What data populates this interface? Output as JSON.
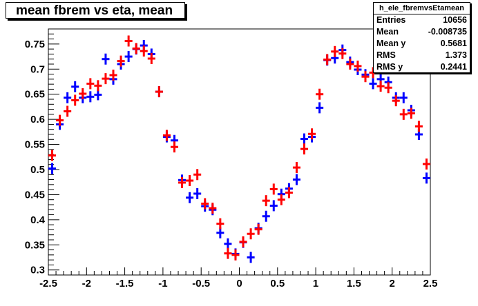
{
  "header": {
    "title": "mean fbrem vs eta, mean"
  },
  "stats": {
    "name": "h_ele_fbremvsEtamean",
    "rows": [
      {
        "label": "Entries",
        "value": "10656"
      },
      {
        "label": "Mean",
        "value": "-0.008735"
      },
      {
        "label": "Mean y",
        "value": "0.5681"
      },
      {
        "label": "RMS",
        "value": "1.373"
      },
      {
        "label": "RMS y",
        "value": "0.2441"
      }
    ]
  },
  "chart_data": {
    "type": "scatter",
    "title": "mean fbrem vs eta, mean",
    "xlim": [
      -2.5,
      2.5
    ],
    "ylim": [
      0.29,
      0.78
    ],
    "x_ticks": [
      -2.5,
      -2,
      -1.5,
      -1,
      -0.5,
      0,
      0.5,
      1,
      1.5,
      2,
      2.5
    ],
    "x_tick_labels": [
      "-2.5",
      "-2",
      "-1.5",
      "-1",
      "-0.5",
      "0",
      "0.5",
      "1",
      "1.5",
      "2",
      "2.5"
    ],
    "y_ticks": [
      0.3,
      0.35,
      0.4,
      0.45,
      0.5,
      0.55,
      0.6,
      0.65,
      0.7,
      0.75
    ],
    "y_tick_labels": [
      "0.3",
      "0.35",
      "0.4",
      "0.45",
      "0.5",
      "0.55",
      "0.6",
      "0.65",
      "0.7",
      "0.75"
    ],
    "grid": false,
    "bin_half_width": 0.05,
    "series": [
      {
        "color": "#0000ff",
        "x": [
          -2.45,
          -2.35,
          -2.25,
          -2.15,
          -2.05,
          -1.95,
          -1.85,
          -1.75,
          -1.65,
          -1.55,
          -1.45,
          -1.35,
          -1.25,
          -1.15,
          -1.05,
          -0.95,
          -0.85,
          -0.75,
          -0.65,
          -0.55,
          -0.45,
          -0.35,
          -0.25,
          -0.15,
          -0.05,
          0.05,
          0.15,
          0.25,
          0.35,
          0.45,
          0.55,
          0.65,
          0.75,
          0.85,
          0.95,
          1.05,
          1.15,
          1.25,
          1.35,
          1.45,
          1.55,
          1.65,
          1.75,
          1.85,
          1.95,
          2.05,
          2.15,
          2.25,
          2.35,
          2.45
        ],
        "y": [
          0.502,
          0.59,
          0.643,
          0.665,
          0.643,
          0.645,
          0.649,
          0.72,
          0.68,
          0.71,
          0.725,
          0.74,
          0.747,
          0.73,
          0.655,
          0.565,
          0.558,
          0.479,
          0.444,
          0.452,
          0.427,
          0.42,
          0.374,
          0.352,
          0.332,
          0.355,
          0.325,
          0.383,
          0.407,
          0.428,
          0.451,
          0.462,
          0.48,
          0.561,
          0.565,
          0.623,
          0.718,
          0.722,
          0.738,
          0.714,
          0.699,
          0.689,
          0.671,
          0.68,
          0.674,
          0.643,
          0.643,
          0.618,
          0.57,
          0.483
        ]
      },
      {
        "color": "#ff0000",
        "x": [
          -2.45,
          -2.35,
          -2.25,
          -2.15,
          -2.05,
          -1.95,
          -1.85,
          -1.75,
          -1.65,
          -1.55,
          -1.45,
          -1.35,
          -1.25,
          -1.15,
          -1.05,
          -0.95,
          -0.85,
          -0.75,
          -0.65,
          -0.55,
          -0.45,
          -0.35,
          -0.25,
          -0.15,
          -0.05,
          0.05,
          0.15,
          0.25,
          0.35,
          0.45,
          0.55,
          0.65,
          0.75,
          0.85,
          0.95,
          1.05,
          1.15,
          1.25,
          1.35,
          1.45,
          1.55,
          1.65,
          1.75,
          1.85,
          1.95,
          2.05,
          2.15,
          2.25,
          2.35,
          2.45
        ],
        "y": [
          0.528,
          0.598,
          0.616,
          0.638,
          0.651,
          0.671,
          0.667,
          0.681,
          0.688,
          0.716,
          0.756,
          0.741,
          0.736,
          0.721,
          0.655,
          0.568,
          0.545,
          0.474,
          0.478,
          0.49,
          0.432,
          0.423,
          0.392,
          0.333,
          0.33,
          0.356,
          0.372,
          0.381,
          0.438,
          0.461,
          0.44,
          0.454,
          0.504,
          0.541,
          0.571,
          0.65,
          0.719,
          0.735,
          0.731,
          0.71,
          0.706,
          0.685,
          0.693,
          0.666,
          0.663,
          0.637,
          0.61,
          0.612,
          0.586,
          0.511
        ]
      }
    ]
  }
}
